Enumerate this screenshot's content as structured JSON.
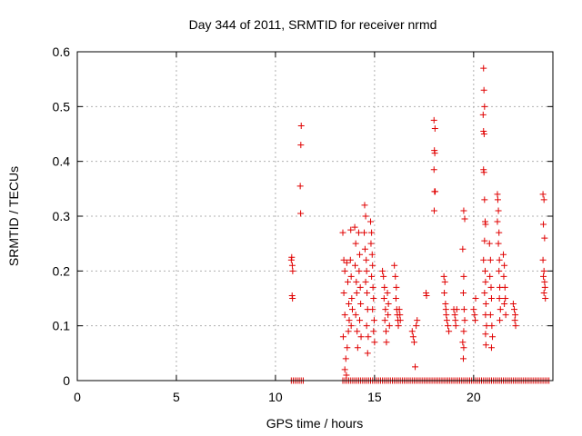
{
  "chart_data": {
    "type": "scatter",
    "title": "Day 344 of 2011, SRMTID for receiver nrmd",
    "xlabel": "GPS time / hours",
    "ylabel": "SRMTID / TECUs",
    "xlim": [
      0,
      24
    ],
    "ylim": [
      0,
      0.6
    ],
    "xticks": [
      0,
      5,
      10,
      15,
      20
    ],
    "yticks": [
      0,
      0.1,
      0.2,
      0.3,
      0.4,
      0.5,
      0.6
    ],
    "xtick_labels": [
      "0",
      "5",
      "10",
      "15",
      "20"
    ],
    "ytick_labels": [
      "0",
      "0.1",
      "0.2",
      "0.3",
      "0.4",
      "0.5",
      "0.6"
    ],
    "grid": true,
    "marker": "plus",
    "color": "#e00000",
    "series": [
      {
        "name": "SRMTID",
        "points": [
          [
            10.8,
            0.22
          ],
          [
            10.82,
            0.225
          ],
          [
            10.85,
            0.21
          ],
          [
            10.87,
            0.2
          ],
          [
            10.84,
            0.155
          ],
          [
            10.86,
            0.15
          ],
          [
            11.3,
            0.465
          ],
          [
            11.28,
            0.43
          ],
          [
            11.25,
            0.355
          ],
          [
            11.27,
            0.305
          ],
          [
            13.4,
            0.27
          ],
          [
            13.45,
            0.22
          ],
          [
            13.5,
            0.2
          ],
          [
            13.45,
            0.16
          ],
          [
            13.5,
            0.12
          ],
          [
            13.42,
            0.08
          ],
          [
            13.55,
            0.04
          ],
          [
            13.5,
            0.02
          ],
          [
            13.58,
            0.01
          ],
          [
            13.6,
            0.215
          ],
          [
            13.65,
            0.18
          ],
          [
            13.7,
            0.14
          ],
          [
            13.72,
            0.11
          ],
          [
            13.68,
            0.09
          ],
          [
            13.62,
            0.06
          ],
          [
            13.8,
            0.275
          ],
          [
            13.78,
            0.22
          ],
          [
            13.82,
            0.19
          ],
          [
            13.85,
            0.15
          ],
          [
            13.88,
            0.13
          ],
          [
            13.82,
            0.1
          ],
          [
            14.0,
            0.28
          ],
          [
            14.05,
            0.25
          ],
          [
            14.02,
            0.21
          ],
          [
            14.08,
            0.18
          ],
          [
            14.1,
            0.16
          ],
          [
            14.05,
            0.12
          ],
          [
            14.12,
            0.09
          ],
          [
            14.15,
            0.06
          ],
          [
            14.2,
            0.27
          ],
          [
            14.25,
            0.23
          ],
          [
            14.22,
            0.2
          ],
          [
            14.28,
            0.17
          ],
          [
            14.3,
            0.14
          ],
          [
            14.25,
            0.11
          ],
          [
            14.32,
            0.08
          ],
          [
            14.5,
            0.32
          ],
          [
            14.55,
            0.3
          ],
          [
            14.48,
            0.27
          ],
          [
            14.52,
            0.24
          ],
          [
            14.58,
            0.22
          ],
          [
            14.6,
            0.2
          ],
          [
            14.55,
            0.18
          ],
          [
            14.62,
            0.16
          ],
          [
            14.65,
            0.13
          ],
          [
            14.6,
            0.1
          ],
          [
            14.68,
            0.08
          ],
          [
            14.65,
            0.05
          ],
          [
            14.8,
            0.29
          ],
          [
            14.85,
            0.27
          ],
          [
            14.82,
            0.25
          ],
          [
            14.88,
            0.23
          ],
          [
            14.9,
            0.21
          ],
          [
            14.85,
            0.19
          ],
          [
            14.92,
            0.17
          ],
          [
            14.95,
            0.15
          ],
          [
            14.9,
            0.13
          ],
          [
            14.98,
            0.11
          ],
          [
            14.95,
            0.09
          ],
          [
            15.0,
            0.07
          ],
          [
            15.4,
            0.2
          ],
          [
            15.45,
            0.19
          ],
          [
            15.5,
            0.17
          ],
          [
            15.48,
            0.15
          ],
          [
            15.55,
            0.13
          ],
          [
            15.52,
            0.11
          ],
          [
            15.58,
            0.09
          ],
          [
            15.6,
            0.07
          ],
          [
            15.65,
            0.16
          ],
          [
            15.7,
            0.14
          ],
          [
            15.68,
            0.12
          ],
          [
            15.75,
            0.1
          ],
          [
            16.0,
            0.21
          ],
          [
            16.05,
            0.19
          ],
          [
            16.1,
            0.17
          ],
          [
            16.08,
            0.15
          ],
          [
            16.12,
            0.13
          ],
          [
            16.15,
            0.12
          ],
          [
            16.18,
            0.11
          ],
          [
            16.2,
            0.1
          ],
          [
            16.25,
            0.13
          ],
          [
            16.28,
            0.12
          ],
          [
            16.3,
            0.11
          ],
          [
            16.9,
            0.09
          ],
          [
            16.95,
            0.08
          ],
          [
            17.0,
            0.07
          ],
          [
            17.1,
            0.1
          ],
          [
            17.15,
            0.11
          ],
          [
            17.05,
            0.025
          ],
          [
            17.6,
            0.16
          ],
          [
            17.62,
            0.155
          ],
          [
            18.0,
            0.475
          ],
          [
            18.05,
            0.46
          ],
          [
            18.02,
            0.42
          ],
          [
            18.04,
            0.415
          ],
          [
            18.0,
            0.385
          ],
          [
            18.06,
            0.345
          ],
          [
            18.03,
            0.345
          ],
          [
            18.01,
            0.31
          ],
          [
            18.5,
            0.19
          ],
          [
            18.55,
            0.18
          ],
          [
            18.52,
            0.16
          ],
          [
            18.58,
            0.14
          ],
          [
            18.6,
            0.13
          ],
          [
            18.62,
            0.12
          ],
          [
            18.65,
            0.11
          ],
          [
            18.7,
            0.1
          ],
          [
            18.75,
            0.09
          ],
          [
            19.0,
            0.13
          ],
          [
            19.05,
            0.12
          ],
          [
            19.08,
            0.11
          ],
          [
            19.1,
            0.1
          ],
          [
            19.15,
            0.13
          ],
          [
            19.5,
            0.31
          ],
          [
            19.55,
            0.295
          ],
          [
            19.45,
            0.24
          ],
          [
            19.5,
            0.19
          ],
          [
            19.48,
            0.16
          ],
          [
            19.52,
            0.13
          ],
          [
            19.55,
            0.11
          ],
          [
            19.5,
            0.09
          ],
          [
            19.45,
            0.07
          ],
          [
            19.5,
            0.06
          ],
          [
            19.48,
            0.04
          ],
          [
            20.0,
            0.13
          ],
          [
            20.05,
            0.12
          ],
          [
            20.1,
            0.15
          ],
          [
            20.08,
            0.11
          ],
          [
            20.5,
            0.57
          ],
          [
            20.52,
            0.53
          ],
          [
            20.55,
            0.5
          ],
          [
            20.48,
            0.485
          ],
          [
            20.5,
            0.455
          ],
          [
            20.53,
            0.45
          ],
          [
            20.5,
            0.385
          ],
          [
            20.52,
            0.38
          ],
          [
            20.55,
            0.33
          ],
          [
            20.58,
            0.29
          ],
          [
            20.6,
            0.285
          ],
          [
            20.55,
            0.255
          ],
          [
            20.5,
            0.22
          ],
          [
            20.58,
            0.2
          ],
          [
            20.6,
            0.18
          ],
          [
            20.55,
            0.16
          ],
          [
            20.62,
            0.14
          ],
          [
            20.6,
            0.12
          ],
          [
            20.65,
            0.1
          ],
          [
            20.6,
            0.085
          ],
          [
            20.62,
            0.065
          ],
          [
            20.8,
            0.25
          ],
          [
            20.85,
            0.22
          ],
          [
            20.82,
            0.19
          ],
          [
            20.88,
            0.17
          ],
          [
            20.9,
            0.15
          ],
          [
            20.85,
            0.12
          ],
          [
            20.92,
            0.1
          ],
          [
            20.95,
            0.08
          ],
          [
            20.9,
            0.06
          ],
          [
            21.2,
            0.34
          ],
          [
            21.22,
            0.33
          ],
          [
            21.25,
            0.31
          ],
          [
            21.2,
            0.29
          ],
          [
            21.28,
            0.27
          ],
          [
            21.25,
            0.25
          ],
          [
            21.3,
            0.22
          ],
          [
            21.28,
            0.2
          ],
          [
            21.32,
            0.17
          ],
          [
            21.3,
            0.15
          ],
          [
            21.35,
            0.13
          ],
          [
            21.32,
            0.11
          ],
          [
            21.5,
            0.23
          ],
          [
            21.55,
            0.21
          ],
          [
            21.52,
            0.19
          ],
          [
            21.58,
            0.17
          ],
          [
            21.6,
            0.15
          ],
          [
            21.55,
            0.14
          ],
          [
            21.62,
            0.12
          ],
          [
            22.0,
            0.14
          ],
          [
            22.05,
            0.13
          ],
          [
            22.1,
            0.12
          ],
          [
            22.08,
            0.11
          ],
          [
            22.12,
            0.1
          ],
          [
            23.5,
            0.34
          ],
          [
            23.55,
            0.33
          ],
          [
            23.52,
            0.285
          ],
          [
            23.58,
            0.26
          ],
          [
            23.5,
            0.22
          ],
          [
            23.55,
            0.2
          ],
          [
            23.52,
            0.19
          ],
          [
            23.58,
            0.18
          ],
          [
            23.6,
            0.17
          ],
          [
            23.55,
            0.16
          ],
          [
            23.62,
            0.15
          ]
        ]
      }
    ],
    "baseline_zero_points": [
      10.8,
      10.9,
      11.0,
      11.1,
      11.2,
      11.3,
      11.4,
      13.4,
      13.5,
      13.6,
      13.7,
      13.8,
      13.9,
      14.0,
      14.1,
      14.2,
      14.3,
      14.4,
      14.5,
      14.6,
      14.7,
      14.8,
      14.9,
      15.0,
      15.1,
      15.2,
      15.3,
      15.4,
      15.5,
      15.6,
      15.7,
      15.8,
      15.9,
      16.0,
      16.1,
      16.2,
      16.3,
      16.4,
      16.5,
      16.6,
      16.7,
      16.8,
      16.9,
      17.0,
      17.1,
      17.2,
      17.3,
      17.4,
      17.5,
      17.6,
      17.7,
      17.8,
      17.9,
      18.0,
      18.1,
      18.2,
      18.3,
      18.4,
      18.5,
      18.6,
      18.7,
      18.8,
      18.9,
      19.0,
      19.1,
      19.2,
      19.3,
      19.4,
      19.5,
      19.6,
      19.7,
      19.8,
      19.9,
      20.0,
      20.1,
      20.2,
      20.3,
      20.4,
      20.5,
      20.6,
      20.7,
      20.8,
      20.9,
      21.0,
      21.1,
      21.2,
      21.3,
      21.4,
      21.5,
      21.6,
      21.7,
      21.8,
      21.9,
      22.0,
      22.1,
      22.2,
      22.3,
      22.4,
      22.5,
      22.6,
      22.7,
      22.8,
      22.9,
      23.0,
      23.1,
      23.2,
      23.3,
      23.4,
      23.5,
      23.6,
      23.7,
      23.8
    ]
  }
}
